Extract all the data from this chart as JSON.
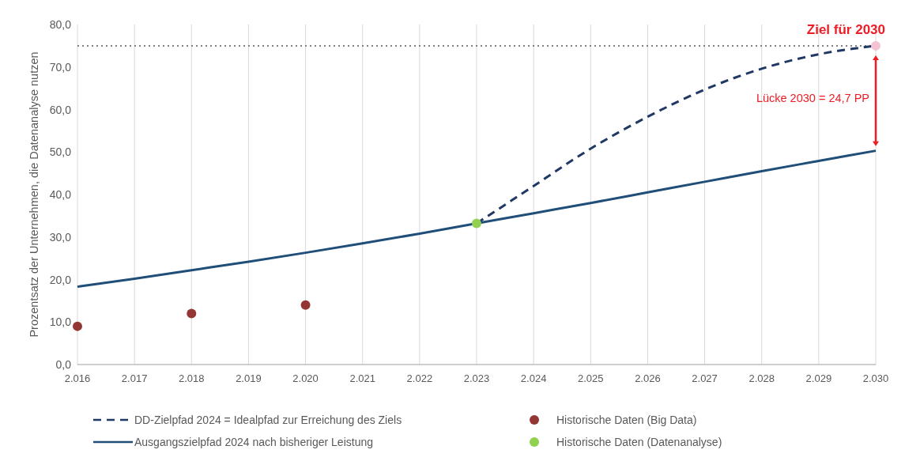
{
  "chart_data": {
    "type": "line",
    "ylabel": "Prozentsatz der Unternehmen, die Datenanalyse nutzen",
    "xlim": [
      2016,
      2030
    ],
    "xticks": [
      {
        "value": 2016,
        "label": "2.016"
      },
      {
        "value": 2017,
        "label": "2.017"
      },
      {
        "value": 2018,
        "label": "2.018"
      },
      {
        "value": 2019,
        "label": "2.019"
      },
      {
        "value": 2020,
        "label": "2.020"
      },
      {
        "value": 2021,
        "label": "2.021"
      },
      {
        "value": 2022,
        "label": "2.022"
      },
      {
        "value": 2023,
        "label": "2.023"
      },
      {
        "value": 2024,
        "label": "2.024"
      },
      {
        "value": 2025,
        "label": "2.025"
      },
      {
        "value": 2026,
        "label": "2.026"
      },
      {
        "value": 2027,
        "label": "2.027"
      },
      {
        "value": 2028,
        "label": "2.028"
      },
      {
        "value": 2029,
        "label": "2.029"
      },
      {
        "value": 2030,
        "label": "2.030"
      }
    ],
    "ylim": [
      0,
      80
    ],
    "yticks": [
      {
        "value": 0,
        "label": "0,0"
      },
      {
        "value": 10,
        "label": "10,0"
      },
      {
        "value": 20,
        "label": "20,0"
      },
      {
        "value": 30,
        "label": "30,0"
      },
      {
        "value": 40,
        "label": "40,0"
      },
      {
        "value": 50,
        "label": "50,0"
      },
      {
        "value": 60,
        "label": "60,0"
      },
      {
        "value": 70,
        "label": "70,0"
      },
      {
        "value": 80,
        "label": "80,0"
      }
    ],
    "grid": "x",
    "legend": "bottom",
    "series": [
      {
        "name": "DD-Zielpfad 2024 = Idealpfad zur Erreichung des Ziels",
        "type": "line",
        "line_style": "dashed",
        "color": "#1f3864",
        "x": [
          2023,
          2024,
          2025,
          2026,
          2027,
          2028,
          2029,
          2030
        ],
        "values": [
          33.2,
          42.0,
          50.8,
          58.3,
          64.7,
          69.6,
          73.0,
          75.0
        ]
      },
      {
        "name": "Ausgangszielpfad 2024 nach bisheriger Leistung",
        "type": "line",
        "line_style": "solid",
        "color": "#1f4e79",
        "x": [
          2016,
          2017,
          2018,
          2019,
          2020,
          2021,
          2022,
          2023,
          2024,
          2025,
          2026,
          2027,
          2028,
          2029,
          2030
        ],
        "values": [
          18.3,
          20.2,
          22.2,
          24.2,
          26.3,
          28.5,
          30.8,
          33.2,
          35.6,
          38.0,
          40.5,
          43.0,
          45.5,
          47.9,
          50.3
        ]
      },
      {
        "name": "Historische Daten (Big Data)",
        "type": "scatter",
        "marker": "circle",
        "color": "#943634",
        "x": [
          2016,
          2018,
          2020
        ],
        "values": [
          9.0,
          12.0,
          14.0
        ]
      },
      {
        "name": "Historische Daten (Datenanalyse)",
        "type": "scatter",
        "marker": "circle",
        "color": "#92d050",
        "x": [
          2023
        ],
        "values": [
          33.2
        ]
      },
      {
        "type": "scatter",
        "marker": "circle",
        "color": "#f4c2d4",
        "x": [
          2030
        ],
        "values": [
          75.0
        ]
      }
    ],
    "ref_lines": [
      {
        "axis": "y",
        "value": 75,
        "color": "#808080",
        "line_style": "dotted"
      }
    ],
    "annotations": [
      {
        "text": "Ziel für 2030",
        "x": 2030,
        "y": 75
      },
      "Lücke 2030 = 24,7 PP"
    ]
  }
}
